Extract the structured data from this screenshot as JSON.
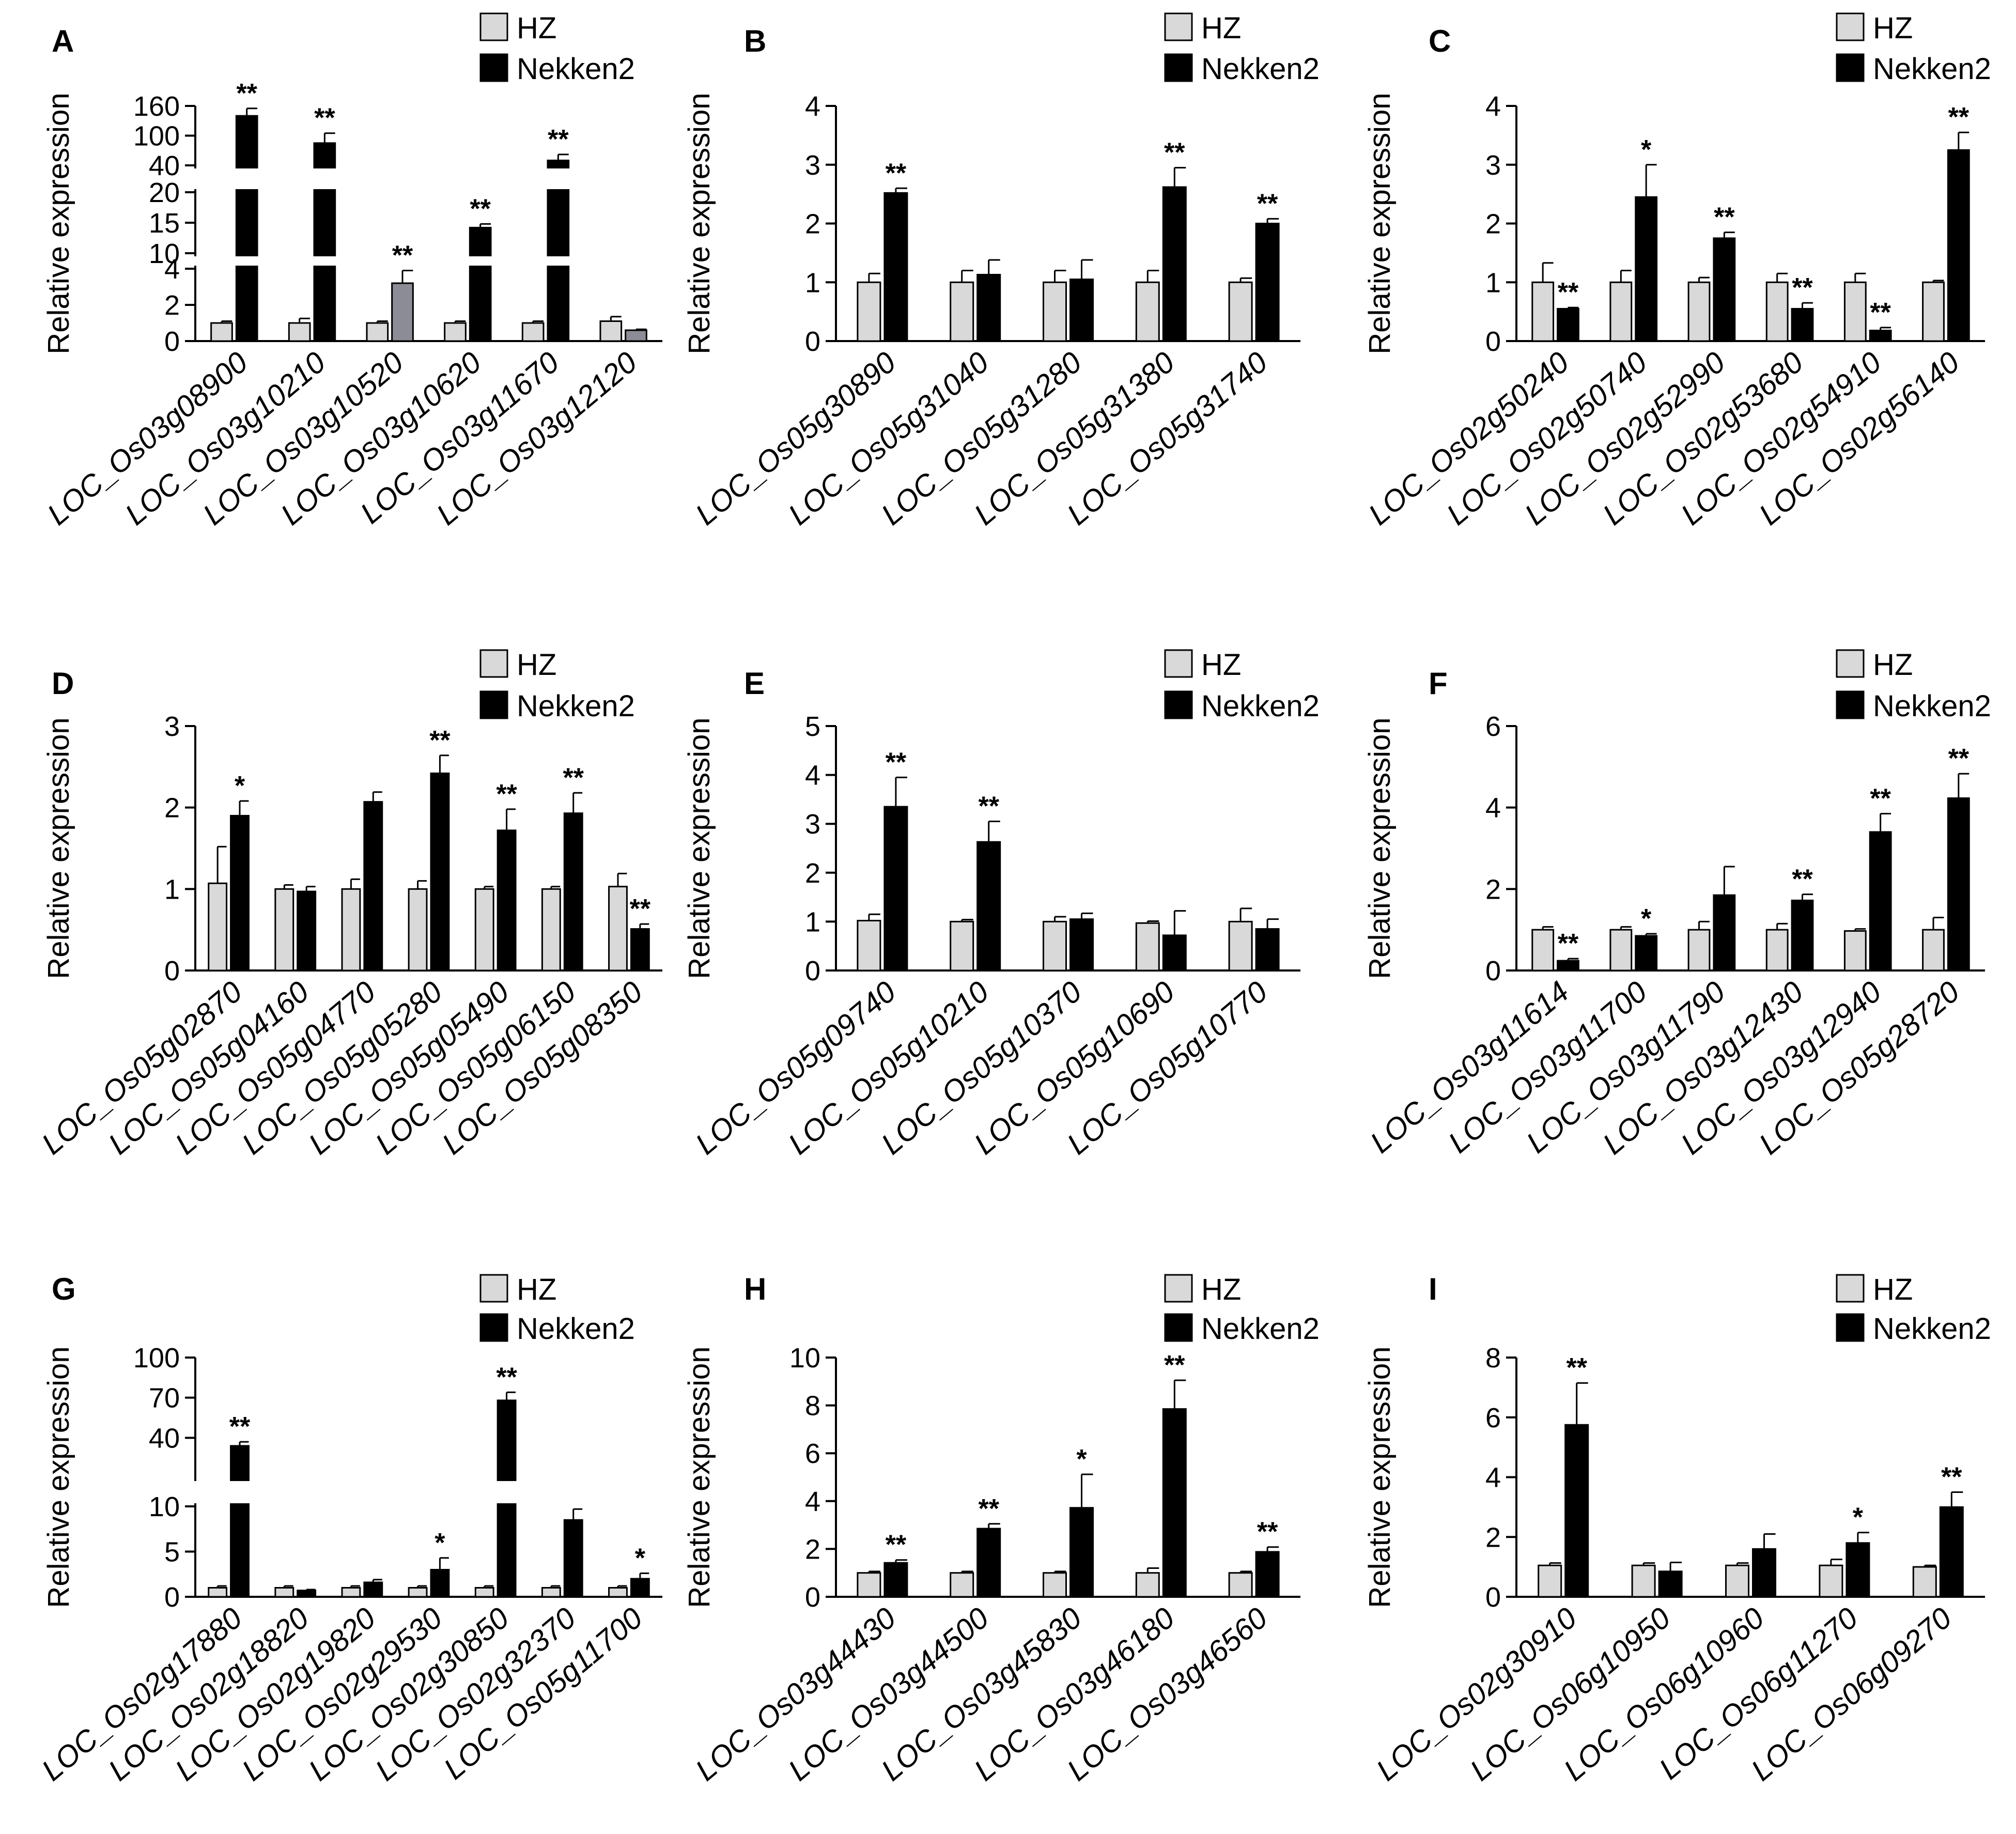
{
  "legend": {
    "hz": "HZ",
    "nekken2": "Nekken2"
  },
  "colors": {
    "hz": "#d9d9d9",
    "nekken2": "#000000",
    "nekken2_alt": "#8c8c96"
  },
  "chart_data": [
    {
      "type": "bar",
      "panel": "A",
      "ylabel": "Relative expression",
      "scale": "broken",
      "ticks": [
        0,
        2,
        4,
        10,
        15,
        20,
        40,
        100,
        160
      ],
      "categories": [
        "LOC_Os03g08900",
        "LOC_Os03g10210",
        "LOC_Os03g10520",
        "LOC_Os03g10620",
        "LOC_Os03g11670",
        "LOC_Os03g12120"
      ],
      "series": [
        {
          "name": "HZ",
          "values": [
            1.0,
            1.0,
            1.0,
            1.0,
            1.0,
            1.1
          ],
          "errors": [
            0.1,
            0.25,
            0.1,
            0.1,
            0.1,
            0.25
          ]
        },
        {
          "name": "Nekken2",
          "values": [
            140,
            85,
            3.2,
            14.2,
            50,
            0.6
          ],
          "errors": [
            15,
            20,
            0.7,
            0.6,
            12,
            0.05
          ],
          "sig": [
            "**",
            "**",
            "**",
            "**",
            "**",
            ""
          ],
          "colors": [
            "#000000",
            "#000000",
            "#8c8c96",
            "#000000",
            "#000000",
            "#8c8c96"
          ]
        }
      ]
    },
    {
      "type": "bar",
      "panel": "B",
      "ylabel": "Relative expression",
      "ylim": [
        0,
        4
      ],
      "ticks": [
        0,
        1,
        2,
        3,
        4
      ],
      "categories": [
        "LOC_Os05g30890",
        "LOC_Os05g31040",
        "LOC_Os05g31280",
        "LOC_Os05g31380",
        "LOC_Os05g31740"
      ],
      "series": [
        {
          "name": "HZ",
          "values": [
            1.0,
            1.0,
            1.0,
            1.0,
            1.0
          ],
          "errors": [
            0.15,
            0.2,
            0.2,
            0.2,
            0.07
          ]
        },
        {
          "name": "Nekken2",
          "values": [
            2.52,
            1.13,
            1.05,
            2.62,
            2.0
          ],
          "errors": [
            0.08,
            0.25,
            0.33,
            0.33,
            0.08
          ],
          "sig": [
            "**",
            "",
            "",
            "**",
            "**"
          ]
        }
      ]
    },
    {
      "type": "bar",
      "panel": "C",
      "ylabel": "Relative expression",
      "ylim": [
        0,
        4
      ],
      "ticks": [
        0,
        1,
        2,
        3,
        4
      ],
      "categories": [
        "LOC_Os02g50240",
        "LOC_Os02g50740",
        "LOC_Os02g52990",
        "LOC_Os02g53680",
        "LOC_Os02g54910",
        "LOC_Os02g56140"
      ],
      "series": [
        {
          "name": "HZ",
          "values": [
            1.0,
            1.0,
            1.0,
            1.0,
            1.0,
            1.0
          ],
          "errors": [
            0.33,
            0.2,
            0.08,
            0.15,
            0.15,
            0.03
          ]
        },
        {
          "name": "Nekken2",
          "values": [
            0.55,
            2.45,
            1.75,
            0.55,
            0.18,
            3.25
          ],
          "errors": [
            0.02,
            0.55,
            0.1,
            0.1,
            0.05,
            0.3
          ],
          "sig": [
            "**",
            "*",
            "**",
            "**",
            "**",
            "**"
          ]
        }
      ]
    },
    {
      "type": "bar",
      "panel": "D",
      "ylabel": "Relative expression",
      "ylim": [
        0,
        3
      ],
      "ticks": [
        0,
        1,
        2,
        3
      ],
      "categories": [
        "LOC_Os05g02870",
        "LOC_Os05g04160",
        "LOC_Os05g04770",
        "LOC_Os05g05280",
        "LOC_Os05g05490",
        "LOC_Os05g06150",
        "LOC_Os05g08350"
      ],
      "series": [
        {
          "name": "HZ",
          "values": [
            1.07,
            1.0,
            1.0,
            1.0,
            1.0,
            1.0,
            1.03
          ],
          "errors": [
            0.45,
            0.05,
            0.12,
            0.1,
            0.03,
            0.03,
            0.16
          ]
        },
        {
          "name": "Nekken2",
          "values": [
            1.9,
            0.97,
            2.07,
            2.42,
            1.72,
            1.93,
            0.51
          ],
          "errors": [
            0.18,
            0.06,
            0.12,
            0.22,
            0.26,
            0.25,
            0.06
          ],
          "sig": [
            "*",
            "",
            "",
            "**",
            "**",
            "**",
            "**"
          ]
        }
      ]
    },
    {
      "type": "bar",
      "panel": "E",
      "ylabel": "Relative expression",
      "ylim": [
        0,
        5
      ],
      "ticks": [
        0,
        1,
        2,
        3,
        4,
        5
      ],
      "categories": [
        "LOC_Os05g09740",
        "LOC_Os05g10210",
        "LOC_Os05g10370",
        "LOC_Os05g10690",
        "LOC_Os05g10770"
      ],
      "series": [
        {
          "name": "HZ",
          "values": [
            1.02,
            1.0,
            1.0,
            0.97,
            1.0
          ],
          "errors": [
            0.13,
            0.04,
            0.1,
            0.04,
            0.27
          ]
        },
        {
          "name": "Nekken2",
          "values": [
            3.35,
            2.63,
            1.05,
            0.72,
            0.85
          ],
          "errors": [
            0.6,
            0.42,
            0.12,
            0.5,
            0.2
          ],
          "sig": [
            "**",
            "**",
            "",
            "",
            ""
          ]
        }
      ]
    },
    {
      "type": "bar",
      "panel": "F",
      "ylabel": "Relative expression",
      "ylim": [
        0,
        6
      ],
      "ticks": [
        0,
        2,
        4,
        6
      ],
      "categories": [
        "LOC_Os03g11614",
        "LOC_Os03g11700",
        "LOC_Os03g11790",
        "LOC_Os03g12430",
        "LOC_Os03g12940",
        "LOC_Os05g28720"
      ],
      "series": [
        {
          "name": "HZ",
          "values": [
            1.0,
            1.0,
            1.0,
            1.0,
            0.97,
            1.0
          ],
          "errors": [
            0.07,
            0.07,
            0.2,
            0.15,
            0.05,
            0.3
          ]
        },
        {
          "name": "Nekken2",
          "values": [
            0.24,
            0.85,
            1.85,
            1.72,
            3.4,
            4.23
          ],
          "errors": [
            0.05,
            0.05,
            0.7,
            0.15,
            0.45,
            0.6
          ],
          "sig": [
            "**",
            "*",
            "",
            "**",
            "**",
            "**"
          ]
        }
      ]
    },
    {
      "type": "bar",
      "panel": "G",
      "ylabel": "Relative expression",
      "scale": "broken",
      "ticks": [
        0,
        5,
        10,
        40,
        70,
        100
      ],
      "categories": [
        "LOC_Os02g17880",
        "LOC_Os02g18820",
        "LOC_Os02g19820",
        "LOC_Os02g29530",
        "LOC_Os02g30850",
        "LOC_Os02g32370",
        "LOC_Os05g11700"
      ],
      "series": [
        {
          "name": "HZ",
          "values": [
            1.0,
            1.0,
            1.0,
            1.0,
            1.0,
            1.0,
            1.0
          ],
          "errors": [
            0.2,
            0.2,
            0.2,
            0.2,
            0.2,
            0.2,
            0.2
          ]
        },
        {
          "name": "Nekken2",
          "values": [
            34,
            0.7,
            1.6,
            3.0,
            68,
            8.5,
            2.0
          ],
          "errors": [
            3,
            0.1,
            0.3,
            1.3,
            6,
            1.2,
            0.6
          ],
          "sig": [
            "**",
            "",
            "",
            "*",
            "**",
            "**",
            "*"
          ]
        }
      ]
    },
    {
      "type": "bar",
      "panel": "H",
      "ylabel": "Relative expression",
      "ylim": [
        0,
        10
      ],
      "ticks": [
        0,
        2,
        4,
        6,
        8,
        10
      ],
      "categories": [
        "LOC_Os03g44430",
        "LOC_Os03g44500",
        "LOC_Os03g45830",
        "LOC_Os03g46180",
        "LOC_Os03g46560"
      ],
      "series": [
        {
          "name": "HZ",
          "values": [
            1.0,
            1.0,
            1.0,
            1.0,
            1.0
          ],
          "errors": [
            0.06,
            0.06,
            0.06,
            0.2,
            0.06
          ]
        },
        {
          "name": "Nekken2",
          "values": [
            1.42,
            2.85,
            3.72,
            7.85,
            1.88
          ],
          "errors": [
            0.12,
            0.2,
            1.4,
            1.2,
            0.2
          ],
          "sig": [
            "**",
            "**",
            "*",
            "**",
            "**"
          ]
        }
      ]
    },
    {
      "type": "bar",
      "panel": "I",
      "ylabel": "Relative expression",
      "ylim": [
        0,
        8
      ],
      "ticks": [
        0,
        2,
        4,
        6,
        8
      ],
      "categories": [
        "LOC_Os02g30910",
        "LOC_Os06g10950",
        "LOC_Os06g10960",
        "LOC_Os06g11270",
        "LOC_Os06g09270"
      ],
      "series": [
        {
          "name": "HZ",
          "values": [
            1.05,
            1.05,
            1.05,
            1.05,
            1.0
          ],
          "errors": [
            0.08,
            0.08,
            0.08,
            0.2,
            0.05
          ]
        },
        {
          "name": "Nekken2",
          "values": [
            5.75,
            0.85,
            1.6,
            1.8,
            3.0
          ],
          "errors": [
            1.4,
            0.3,
            0.5,
            0.35,
            0.5
          ],
          "sig": [
            "**",
            "",
            "",
            "*",
            "**"
          ]
        }
      ]
    }
  ]
}
